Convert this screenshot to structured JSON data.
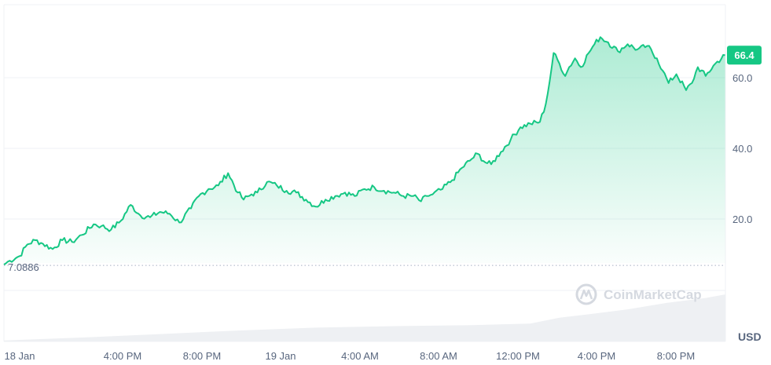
{
  "chart_data": {
    "type": "area",
    "currency_unit": "USD",
    "current_value": "66.4",
    "start_value_label": "7.0886",
    "start_value": 7.0886,
    "yticks": [
      "20.0",
      "40.0",
      "60.0"
    ],
    "ylim": [
      0,
      80
    ],
    "x_tick_labels": [
      "18 Jan",
      "4:00 PM",
      "8:00 PM",
      "19 Jan",
      "4:00 AM",
      "8:00 AM",
      "12:00 PM",
      "4:00 PM",
      "8:00 PM"
    ],
    "watermark": "CoinMarketCap",
    "colors": {
      "line": "#16c784",
      "tag": "#16c784",
      "grid": "#eff2f5",
      "baseline": "#a6b0c3",
      "volume": "#eef0f3"
    },
    "price_points": [
      [
        0.0,
        7.1
      ],
      [
        0.3,
        8.2
      ],
      [
        0.8,
        9.5
      ],
      [
        1.2,
        12.8
      ],
      [
        1.6,
        14.0
      ],
      [
        2.0,
        13.0
      ],
      [
        2.5,
        11.5
      ],
      [
        3.0,
        14.0
      ],
      [
        3.5,
        13.5
      ],
      [
        4.0,
        15.5
      ],
      [
        4.6,
        18.5
      ],
      [
        5.0,
        18.0
      ],
      [
        5.5,
        17.0
      ],
      [
        6.0,
        19.5
      ],
      [
        6.5,
        24.0
      ],
      [
        7.0,
        21.0
      ],
      [
        7.5,
        20.5
      ],
      [
        8.0,
        22.0
      ],
      [
        8.5,
        21.5
      ],
      [
        9.0,
        19.0
      ],
      [
        9.6,
        23.0
      ],
      [
        10.0,
        26.5
      ],
      [
        10.5,
        28.5
      ],
      [
        11.0,
        29.5
      ],
      [
        11.5,
        33.0
      ],
      [
        12.0,
        27.5
      ],
      [
        12.3,
        25.5
      ],
      [
        12.7,
        27.0
      ],
      [
        13.0,
        27.5
      ],
      [
        13.5,
        30.5
      ],
      [
        14.0,
        29.5
      ],
      [
        14.5,
        28.0
      ],
      [
        15.0,
        27.5
      ],
      [
        15.5,
        25.5
      ],
      [
        16.0,
        23.5
      ],
      [
        16.5,
        25.5
      ],
      [
        17.0,
        26.5
      ],
      [
        17.5,
        27.5
      ],
      [
        18.0,
        26.5
      ],
      [
        18.5,
        28.5
      ],
      [
        19.0,
        29.0
      ],
      [
        19.5,
        28.0
      ],
      [
        20.0,
        27.5
      ],
      [
        20.5,
        26.5
      ],
      [
        21.0,
        26.5
      ],
      [
        21.4,
        25.0
      ],
      [
        21.7,
        26.5
      ],
      [
        22.0,
        27.0
      ],
      [
        22.5,
        28.5
      ],
      [
        23.0,
        31.0
      ],
      [
        23.5,
        34.5
      ],
      [
        24.0,
        37.0
      ],
      [
        24.3,
        38.5
      ],
      [
        24.7,
        36.0
      ],
      [
        25.0,
        35.5
      ],
      [
        25.5,
        39.0
      ],
      [
        26.0,
        42.5
      ],
      [
        26.5,
        46.0
      ],
      [
        27.0,
        47.0
      ],
      [
        27.5,
        47.5
      ],
      [
        27.8,
        52.5
      ],
      [
        28.0,
        59.0
      ],
      [
        28.2,
        67.0
      ],
      [
        28.5,
        64.0
      ],
      [
        28.8,
        60.5
      ],
      [
        29.0,
        63.0
      ],
      [
        29.3,
        65.5
      ],
      [
        29.6,
        63.0
      ],
      [
        30.0,
        67.0
      ],
      [
        30.3,
        69.5
      ],
      [
        30.6,
        71.5
      ],
      [
        31.0,
        70.0
      ],
      [
        31.5,
        67.5
      ],
      [
        32.0,
        69.5
      ],
      [
        32.5,
        68.0
      ],
      [
        33.0,
        69.0
      ],
      [
        33.5,
        65.5
      ],
      [
        33.8,
        62.0
      ],
      [
        34.1,
        58.5
      ],
      [
        34.5,
        61.0
      ],
      [
        35.0,
        56.5
      ],
      [
        35.3,
        58.5
      ],
      [
        35.6,
        63.0
      ],
      [
        36.0,
        60.5
      ],
      [
        36.5,
        64.0
      ],
      [
        37.0,
        66.4
      ]
    ],
    "volume_points": [
      [
        0,
        0.02
      ],
      [
        4,
        0.08
      ],
      [
        8,
        0.15
      ],
      [
        12,
        0.22
      ],
      [
        16,
        0.28
      ],
      [
        20,
        0.31
      ],
      [
        24,
        0.33
      ],
      [
        27,
        0.36
      ],
      [
        28.5,
        0.48
      ],
      [
        30,
        0.55
      ],
      [
        32,
        0.65
      ],
      [
        34,
        0.78
      ],
      [
        36,
        0.88
      ],
      [
        37,
        0.95
      ]
    ]
  }
}
